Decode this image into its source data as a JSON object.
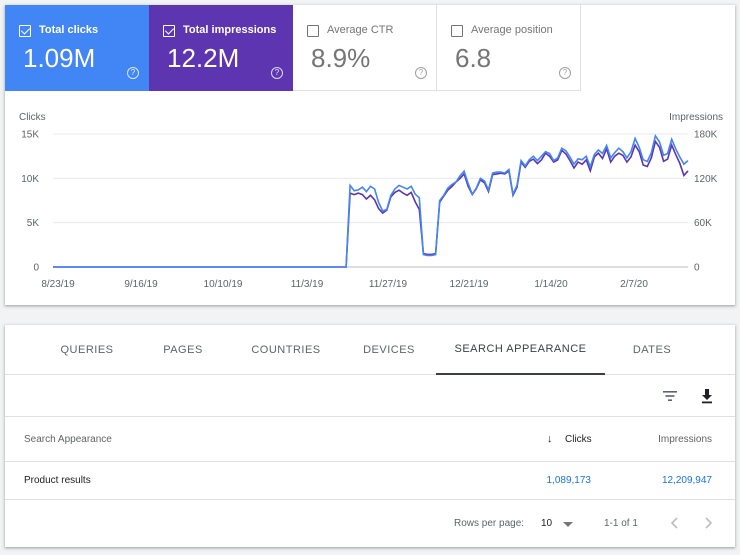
{
  "metrics": {
    "clicks": {
      "label": "Total clicks",
      "value": "1.09M",
      "checked": true,
      "color": "#4285f4"
    },
    "impressions": {
      "label": "Total impressions",
      "value": "12.2M",
      "checked": true,
      "color": "#5e35b1"
    },
    "ctr": {
      "label": "Average CTR",
      "value": "8.9%",
      "checked": false
    },
    "position": {
      "label": "Average position",
      "value": "6.8",
      "checked": false
    },
    "help_glyph": "?"
  },
  "chart_data": {
    "type": "line",
    "left_axis": {
      "label": "Clicks",
      "ticks": [
        "15K",
        "10K",
        "5K",
        "0"
      ],
      "max": 15000
    },
    "right_axis": {
      "label": "Impressions",
      "ticks": [
        "180K",
        "120K",
        "60K",
        "0"
      ],
      "max": 180000
    },
    "x_ticks": [
      "8/23/19",
      "9/16/19",
      "10/10/19",
      "11/3/19",
      "11/27/19",
      "12/21/19",
      "1/14/20",
      "2/7/20"
    ],
    "grid": true,
    "series": [
      {
        "name": "Clicks",
        "axis": "left",
        "color": "#4285f4",
        "values": [
          0,
          0,
          0,
          0,
          0,
          0,
          0,
          0,
          0,
          0,
          0,
          0,
          0,
          0,
          0,
          0,
          0,
          0,
          0,
          0,
          0,
          0,
          0,
          0,
          0,
          0,
          0,
          0,
          0,
          0,
          0,
          0,
          0,
          0,
          0,
          0,
          0,
          0,
          0,
          0,
          0,
          0,
          0,
          0,
          0,
          0,
          0,
          0,
          0,
          0,
          0,
          0,
          0,
          0,
          0,
          0,
          0,
          0,
          0,
          0,
          0,
          0,
          0,
          0,
          0,
          0,
          0,
          0,
          0,
          0,
          0,
          0,
          0,
          9200,
          8600,
          8700,
          9000,
          8500,
          9100,
          8800,
          7300,
          6300,
          6500,
          8100,
          8800,
          9200,
          9000,
          8800,
          9100,
          8200,
          7800,
          1400,
          1300,
          1300,
          1400,
          7500,
          8100,
          8900,
          9300,
          9600,
          10300,
          10800,
          9400,
          8200,
          8900,
          10000,
          9700,
          8700,
          10600,
          10700,
          10700,
          10600,
          11000,
          8200,
          9200,
          12000,
          11400,
          12100,
          12500,
          12000,
          12500,
          13000,
          12800,
          12000,
          12300,
          13400,
          13100,
          12400,
          11600,
          12200,
          12100,
          12500,
          11300,
          12700,
          13200,
          12800,
          13700,
          12300,
          12900,
          13400,
          13000,
          12300,
          13000,
          14500,
          13500,
          12100,
          11900,
          12900,
          14800,
          14100,
          12600,
          12800,
          14400,
          13300,
          12400,
          11600,
          12000
        ]
      },
      {
        "name": "Impressions",
        "axis": "right",
        "color": "#5e35b1",
        "values": [
          0,
          0,
          0,
          0,
          0,
          0,
          0,
          0,
          0,
          0,
          0,
          0,
          0,
          0,
          0,
          0,
          0,
          0,
          0,
          0,
          0,
          0,
          0,
          0,
          0,
          0,
          0,
          0,
          0,
          0,
          0,
          0,
          0,
          0,
          0,
          0,
          0,
          0,
          0,
          0,
          0,
          0,
          0,
          0,
          0,
          0,
          0,
          0,
          0,
          0,
          0,
          0,
          0,
          0,
          0,
          0,
          0,
          0,
          0,
          0,
          0,
          0,
          0,
          0,
          0,
          0,
          0,
          0,
          0,
          0,
          0,
          0,
          0,
          100000,
          98000,
          100000,
          98000,
          92000,
          97000,
          91000,
          79000,
          73000,
          77000,
          95000,
          101000,
          104000,
          100000,
          97000,
          101000,
          88000,
          78000,
          18000,
          17000,
          17000,
          18000,
          88000,
          96000,
          104000,
          109000,
          115000,
          120000,
          126000,
          109000,
          98000,
          106000,
          118000,
          114000,
          102000,
          125000,
          126000,
          127000,
          126000,
          130000,
          97000,
          108000,
          142000,
          135000,
          143000,
          146000,
          140000,
          145000,
          154000,
          150000,
          142000,
          145000,
          158000,
          153000,
          144000,
          134000,
          142000,
          139000,
          145000,
          130000,
          149000,
          154000,
          147000,
          160000,
          142000,
          150000,
          154000,
          151000,
          142000,
          149000,
          165000,
          156000,
          138000,
          136000,
          148000,
          170000,
          162000,
          143000,
          146000,
          165000,
          152000,
          140000,
          124000,
          130000
        ]
      }
    ]
  },
  "tabs": [
    "QUERIES",
    "PAGES",
    "COUNTRIES",
    "DEVICES",
    "SEARCH APPEARANCE",
    "DATES"
  ],
  "active_tab": "SEARCH APPEARANCE",
  "table": {
    "columns": {
      "dimension": "Search Appearance",
      "clicks": "Clicks",
      "impressions": "Impressions",
      "sort_arrow": "↓"
    },
    "rows": [
      {
        "dimension": "Product results",
        "clicks": "1,089,173",
        "impressions": "12,209,947"
      }
    ]
  },
  "pagination": {
    "rows_per_page_label": "Rows per page:",
    "rows_per_page": "10",
    "range": "1-1 of 1"
  },
  "colors": {
    "link": "#1a73e8",
    "clicks": "#4285f4",
    "impressions": "#5e35b1"
  }
}
